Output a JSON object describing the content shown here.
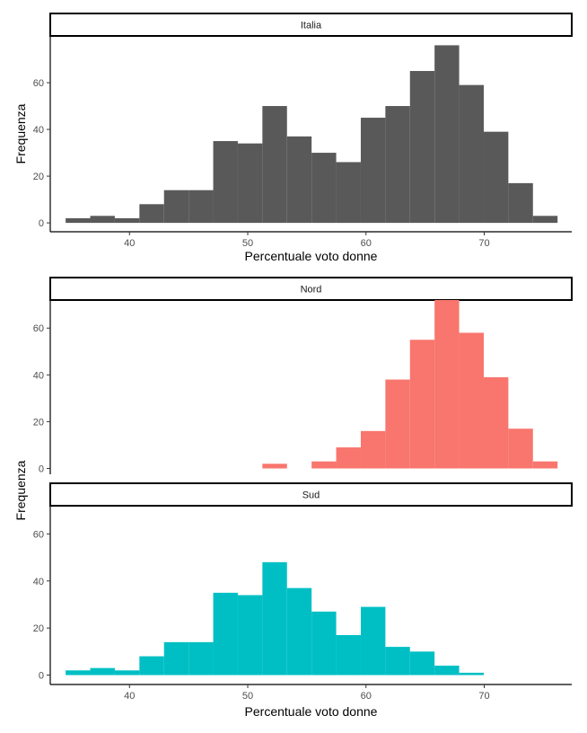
{
  "chart_data": [
    {
      "type": "bar",
      "panel": "Italia",
      "title": "Italia",
      "xlabel": "Percentuale voto donne",
      "ylabel": "Frequenza",
      "color": "#595959",
      "xlim": [
        33.3,
        77.4
      ],
      "ylim": [
        -3.8,
        80
      ],
      "x_ticks": [
        40,
        50,
        60,
        70
      ],
      "y_ticks": [
        0,
        20,
        40,
        60
      ],
      "grid": false,
      "bin_width": 2.08,
      "bin_starts": [
        34.6,
        36.68,
        38.76,
        40.84,
        42.92,
        45.0,
        47.08,
        49.16,
        51.24,
        53.32,
        55.4,
        57.48,
        59.56,
        61.64,
        63.72,
        65.8,
        67.88,
        69.96,
        72.04,
        74.12
      ],
      "values": [
        2,
        3,
        2,
        8,
        14,
        14,
        35,
        34,
        50,
        37,
        30,
        26,
        45,
        50,
        65,
        76,
        59,
        39,
        17,
        3
      ]
    },
    {
      "type": "bar",
      "panel": "Nord",
      "title": "Nord",
      "xlabel": "",
      "ylabel": "Frequenza",
      "color": "#F8766D",
      "xlim": [
        33.3,
        77.4
      ],
      "ylim": [
        -2.5,
        72
      ],
      "x_ticks": [
        40,
        50,
        60,
        70
      ],
      "y_ticks": [
        0,
        20,
        40,
        60
      ],
      "grid": false,
      "bin_width": 2.08,
      "bin_starts": [
        34.6,
        36.68,
        38.76,
        40.84,
        42.92,
        45.0,
        47.08,
        49.16,
        51.24,
        53.32,
        55.4,
        57.48,
        59.56,
        61.64,
        63.72,
        65.8,
        67.88,
        69.96,
        72.04,
        74.12
      ],
      "values": [
        0,
        0,
        0,
        0,
        0,
        0,
        0,
        0,
        2,
        0,
        3,
        9,
        16,
        38,
        55,
        72,
        58,
        39,
        17,
        3
      ]
    },
    {
      "type": "bar",
      "panel": "Sud",
      "title": "Sud",
      "xlabel": "Percentuale voto donne",
      "ylabel": "Frequenza",
      "color": "#00BFC4",
      "xlim": [
        33.3,
        77.4
      ],
      "ylim": [
        -4,
        72
      ],
      "x_ticks": [
        40,
        50,
        60,
        70
      ],
      "y_ticks": [
        0,
        20,
        40,
        60
      ],
      "grid": false,
      "bin_width": 2.08,
      "bin_starts": [
        34.6,
        36.68,
        38.76,
        40.84,
        42.92,
        45.0,
        47.08,
        49.16,
        51.24,
        53.32,
        55.4,
        57.48,
        59.56,
        61.64,
        63.72,
        65.8,
        67.88,
        69.96,
        72.04,
        74.12
      ],
      "values": [
        2,
        3,
        2,
        8,
        14,
        14,
        35,
        34,
        48,
        37,
        27,
        17,
        29,
        12,
        10,
        4,
        1,
        0,
        0,
        0
      ]
    }
  ]
}
